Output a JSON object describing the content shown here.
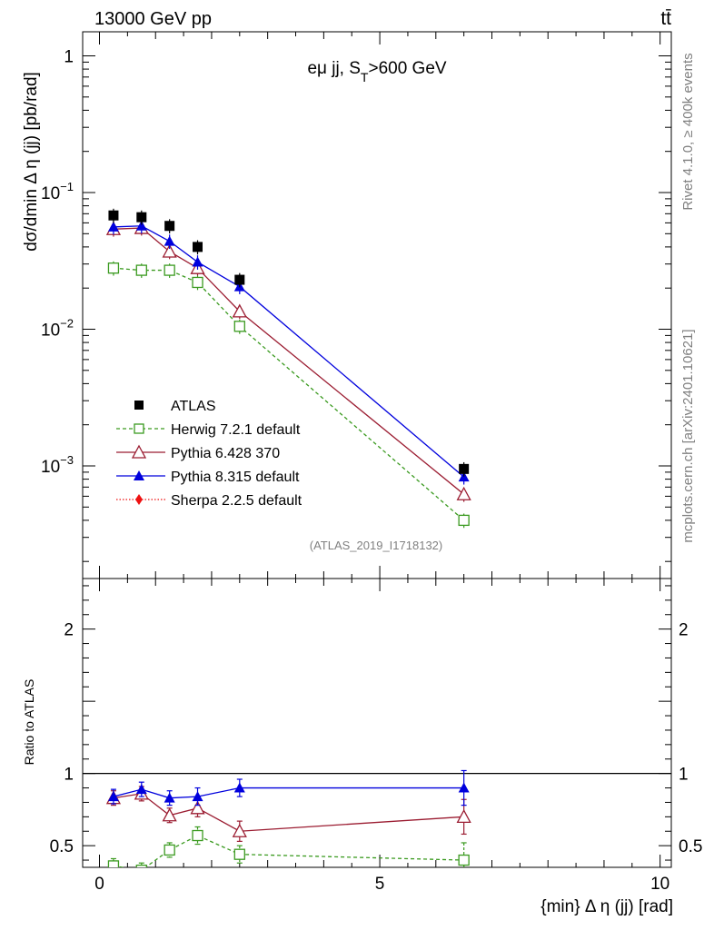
{
  "header": {
    "left": "13000 GeV pp",
    "right": "tt̄"
  },
  "side_text": {
    "rivet": "Rivet 4.1.0, ≥ 400k events",
    "mcplots": "mcplots.cern.ch [arXiv:2401.10621]"
  },
  "colors": {
    "atlas": "#000000",
    "herwig": "#3a9a1f",
    "pythia6": "#9b1c31",
    "pythia8": "#0000dd",
    "sherpa": "#ee1111"
  },
  "chart_data": [
    {
      "type": "scatter",
      "title": "eμ jj, S_T>600 GeV",
      "title_main": "eμ jj, S",
      "title_sub": "T",
      "title_tail": ">600 GeV",
      "xlabel": "{min} Δ η (jj) [rad]",
      "ylabel": "dσ/dmin Δ η (jj) [pb/rad]",
      "yscale": "log",
      "xlim": [
        -0.3,
        10.2
      ],
      "ylim": [
        0.00015,
        1.5
      ],
      "yticks": [
        {
          "value": 1,
          "label": "1"
        },
        {
          "value": 0.1,
          "label": "10",
          "exp": "−1"
        },
        {
          "value": 0.01,
          "label": "10",
          "exp": "−2"
        },
        {
          "value": 0.001,
          "label": "10",
          "exp": "−3"
        }
      ],
      "analysis_label": "(ATLAS_2019_I1718132)",
      "x": [
        0.25,
        0.75,
        1.25,
        1.75,
        2.5,
        6.5
      ],
      "series": [
        {
          "name": "ATLAS",
          "key": "atlas",
          "marker": "square-filled",
          "line": "none",
          "values": [
            0.068,
            0.066,
            0.057,
            0.04,
            0.023,
            0.00095
          ]
        },
        {
          "name": "Herwig 7.2.1 default",
          "key": "herwig",
          "marker": "square-open",
          "line": "dashed",
          "values": [
            0.028,
            0.027,
            0.027,
            0.022,
            0.0105,
            0.0004
          ]
        },
        {
          "name": "Pythia 6.428 370",
          "key": "pythia6",
          "marker": "triangle-open",
          "line": "solid",
          "values": [
            0.054,
            0.055,
            0.037,
            0.028,
            0.0135,
            0.00062
          ]
        },
        {
          "name": "Pythia 8.315 default",
          "key": "pythia8",
          "marker": "triangle-filled",
          "line": "solid",
          "values": [
            0.056,
            0.057,
            0.044,
            0.031,
            0.0205,
            0.00083
          ]
        },
        {
          "name": "Sherpa 2.2.5 default",
          "key": "sherpa",
          "marker": "diamond-filled",
          "line": "dotted",
          "values": []
        }
      ]
    },
    {
      "type": "scatter",
      "ylabel": "Ratio to ATLAS",
      "xlabel": "{min} Δ η (jj) [rad]",
      "xlim": [
        -0.3,
        10.2
      ],
      "ylim": [
        0.35,
        2.35
      ],
      "yticks": [
        {
          "value": 0.5,
          "label": "0.5"
        },
        {
          "value": 1,
          "label": "1"
        },
        {
          "value": 2,
          "label": "2"
        }
      ],
      "xticks": [
        {
          "value": 0,
          "label": "0"
        },
        {
          "value": 5,
          "label": "5"
        },
        {
          "value": 10,
          "label": "10"
        }
      ],
      "reference_line": 1,
      "x": [
        0.25,
        0.75,
        1.25,
        1.75,
        2.5,
        6.5
      ],
      "series": [
        {
          "name": "Herwig 7.2.1 default",
          "key": "herwig",
          "values": [
            0.36,
            0.33,
            0.47,
            0.57,
            0.44,
            0.4
          ],
          "errors": [
            0.05,
            0.05,
            0.05,
            0.06,
            0.06,
            0.12
          ]
        },
        {
          "name": "Pythia 6.428 370",
          "key": "pythia6",
          "values": [
            0.83,
            0.86,
            0.71,
            0.76,
            0.6,
            0.7
          ],
          "errors": [
            0.05,
            0.05,
            0.05,
            0.06,
            0.07,
            0.12
          ]
        },
        {
          "name": "Pythia 8.315 default",
          "key": "pythia8",
          "values": [
            0.84,
            0.89,
            0.83,
            0.84,
            0.9,
            0.9
          ],
          "errors": [
            0.05,
            0.05,
            0.05,
            0.06,
            0.06,
            0.12
          ]
        }
      ]
    }
  ]
}
